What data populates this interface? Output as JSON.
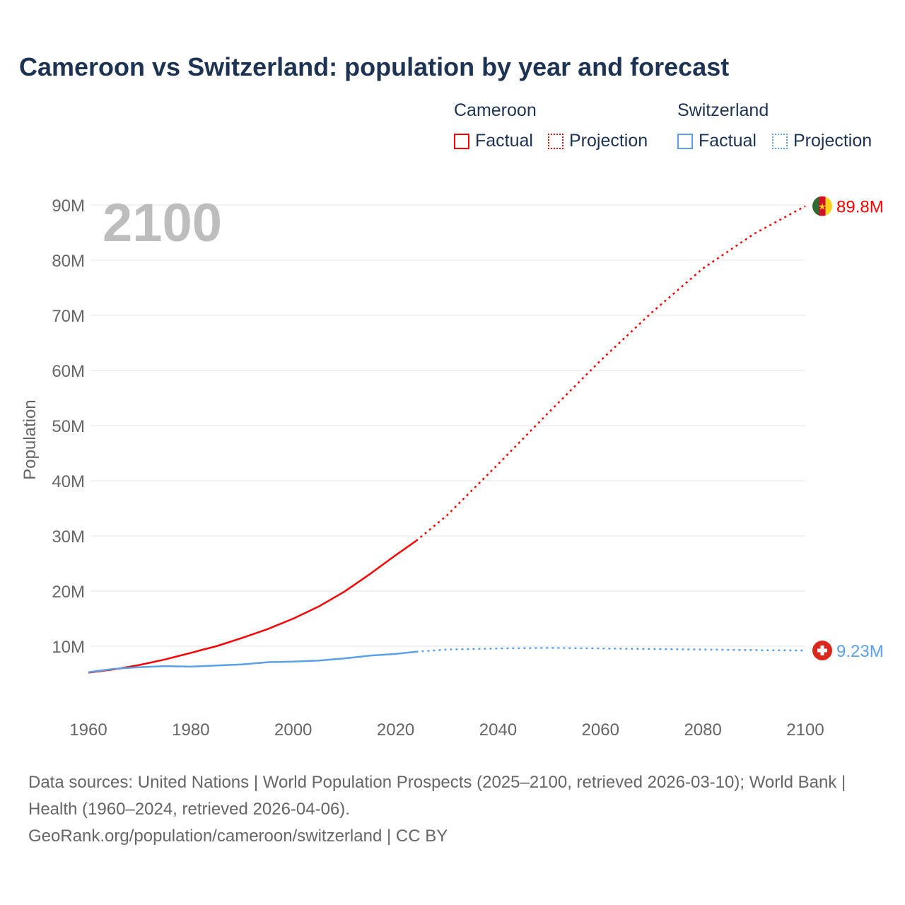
{
  "chart_data": {
    "type": "line",
    "title": "Cameroon vs Switzerland: population by year and forecast",
    "ylabel": "Population",
    "xlabel": "",
    "xlim": [
      1960,
      2100
    ],
    "ylim": [
      0,
      95
    ],
    "y_unit": "millions",
    "x_ticks": [
      "1960",
      "1980",
      "2000",
      "2020",
      "2040",
      "2060",
      "2080",
      "2100"
    ],
    "y_ticks": [
      "10M",
      "20M",
      "30M",
      "40M",
      "50M",
      "60M",
      "70M",
      "80M",
      "90M"
    ],
    "grid": true,
    "year_label": "2100",
    "legend": {
      "placement": "top-right",
      "groups": [
        {
          "name": "Cameroon",
          "items": [
            "Factual",
            "Projection"
          ]
        },
        {
          "name": "Switzerland",
          "items": [
            "Factual",
            "Projection"
          ]
        }
      ]
    },
    "series": [
      {
        "name": "Cameroon",
        "color": "#ff0000",
        "end_label": "89.8M",
        "flag": "cameroon-flag",
        "factual": {
          "x": [
            1960,
            1965,
            1970,
            1975,
            1980,
            1982,
            1985,
            1990,
            1995,
            2000,
            2005,
            2010,
            2015,
            2020,
            2024
          ],
          "y": [
            5.2,
            5.8,
            6.6,
            7.6,
            8.8,
            9.3,
            10.0,
            11.5,
            13.1,
            15.0,
            17.2,
            19.9,
            23.1,
            26.5,
            29.1
          ]
        },
        "projection": {
          "x": [
            2024,
            2030,
            2040,
            2050,
            2060,
            2070,
            2080,
            2090,
            2100
          ],
          "y": [
            29.1,
            33.7,
            43.0,
            52.5,
            61.8,
            70.5,
            78.5,
            84.8,
            89.8
          ]
        }
      },
      {
        "name": "Switzerland",
        "color": "#5aa0ec",
        "end_label": "9.23M",
        "flag": "switzerland-flag",
        "factual": {
          "x": [
            1960,
            1965,
            1970,
            1975,
            1980,
            1985,
            1990,
            1995,
            2000,
            2005,
            2010,
            2015,
            2020,
            2024
          ],
          "y": [
            5.3,
            5.9,
            6.2,
            6.4,
            6.3,
            6.5,
            6.7,
            7.1,
            7.2,
            7.4,
            7.8,
            8.3,
            8.6,
            9.0
          ]
        },
        "projection": {
          "x": [
            2024,
            2030,
            2040,
            2050,
            2060,
            2070,
            2080,
            2090,
            2100
          ],
          "y": [
            9.0,
            9.4,
            9.6,
            9.7,
            9.6,
            9.5,
            9.4,
            9.3,
            9.23
          ]
        }
      }
    ]
  },
  "source": {
    "line1": "Data sources: United Nations | World Population Prospects (2025–2100, retrieved 2026-03-10); World Bank | Health (1960–2024, retrieved 2026-04-06).",
    "line2": "GeoRank.org/population/cameroon/switzerland | CC BY"
  }
}
